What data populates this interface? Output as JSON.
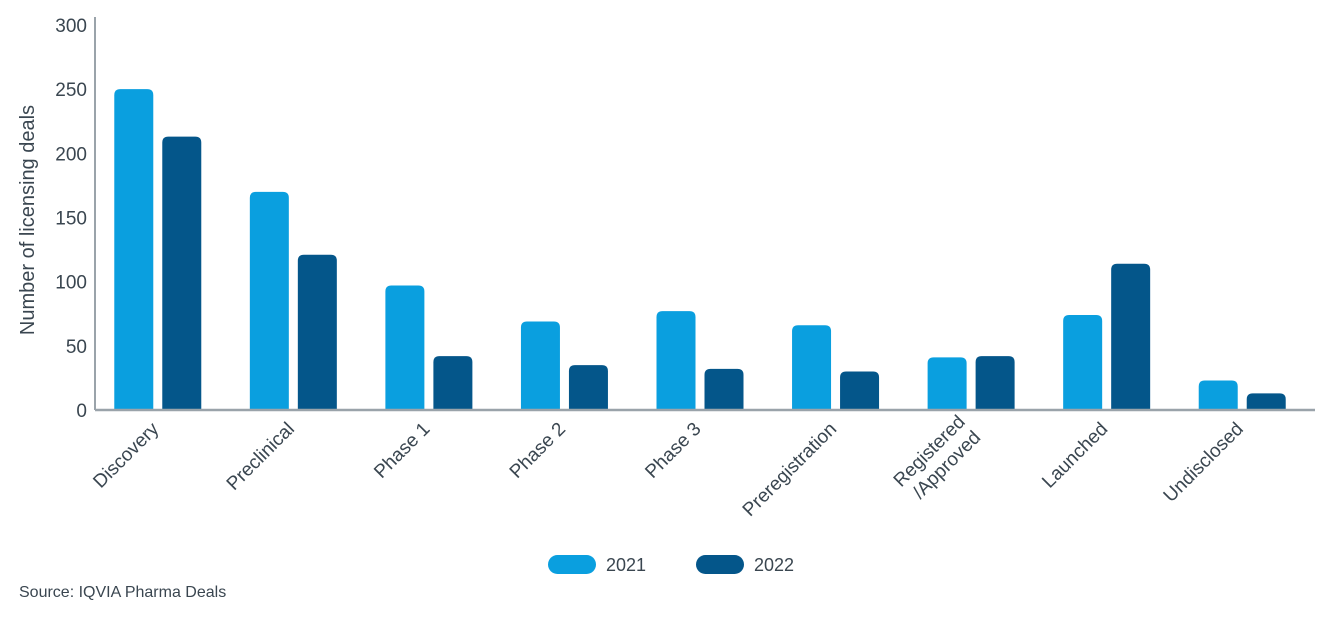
{
  "chart_data": {
    "type": "bar",
    "categories": [
      "Discovery",
      "Preclinical",
      "Phase 1",
      "Phase 2",
      "Phase 3",
      "Preregistration",
      "Registered\n/Approved",
      "Launched",
      "Undisclosed"
    ],
    "series": [
      {
        "name": "2021",
        "color": "#0a9fdf",
        "values": [
          250,
          170,
          97,
          69,
          77,
          66,
          41,
          74,
          23
        ]
      },
      {
        "name": "2022",
        "color": "#04568a",
        "values": [
          213,
          121,
          42,
          35,
          32,
          30,
          42,
          114,
          13
        ]
      }
    ],
    "ylabel": "Number of licensing deals",
    "ylim": [
      0,
      300
    ],
    "yticks": [
      0,
      50,
      100,
      150,
      200,
      250,
      300
    ],
    "legend_position": "bottom-center",
    "grid": false
  },
  "source": "Source: IQVIA Pharma Deals"
}
